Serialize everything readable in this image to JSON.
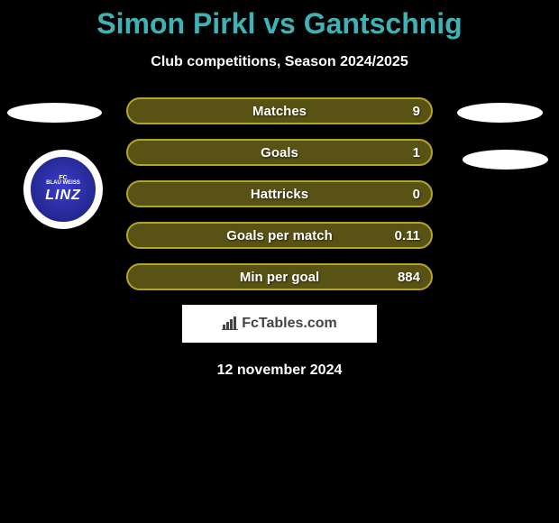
{
  "title": "Simon Pirkl vs Gantschnig",
  "title_color": "#3eb2b4",
  "subtitle": "Club competitions, Season 2024/2025",
  "background_color": "#000000",
  "badge": {
    "line1": "FC",
    "line2": "BLAU WEISS",
    "line3": "LINZ",
    "bg_color": "#2a2d9f"
  },
  "stats": [
    {
      "label": "Matches",
      "value": "9",
      "color": "#b2a429"
    },
    {
      "label": "Goals",
      "value": "1",
      "color": "#b2a429"
    },
    {
      "label": "Hattricks",
      "value": "0",
      "color": "#b2a429"
    },
    {
      "label": "Goals per match",
      "value": "0.11",
      "color": "#b2a429"
    },
    {
      "label": "Min per goal",
      "value": "884",
      "color": "#b2a429"
    }
  ],
  "footer": {
    "brand": "FcTables.com",
    "date": "12 november 2024"
  },
  "styling": {
    "stat_bar_width": 340,
    "stat_bar_height": 30,
    "stat_bar_radius": 15,
    "stat_label_fontsize": 15,
    "title_fontsize": 32,
    "subtitle_fontsize": 16
  }
}
